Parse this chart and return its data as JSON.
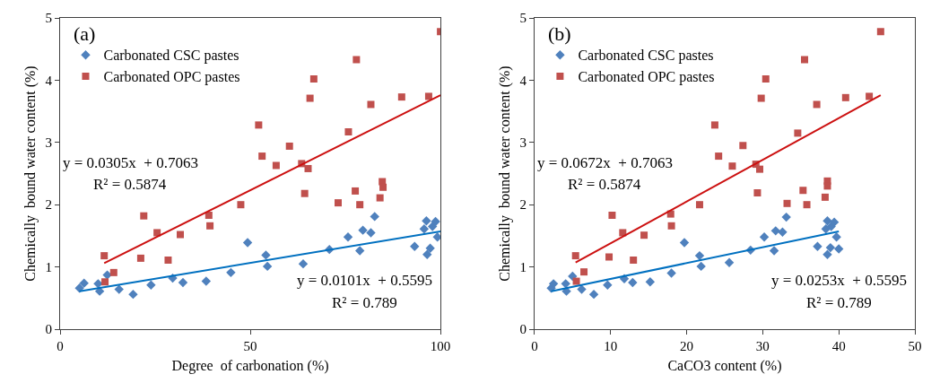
{
  "chart_data": [
    {
      "type": "scatter",
      "title": "(a)",
      "xlabel": "Degree  of carbonation (%)",
      "ylabel": "Chemically  bound water content (%)",
      "xlim": [
        0,
        100
      ],
      "xticks": [
        0,
        50,
        100
      ],
      "ylim": [
        0,
        5
      ],
      "yticks": [
        0,
        1,
        2,
        3,
        4,
        5
      ],
      "legend": "top left",
      "series": [
        {
          "name": "Carbonated CSC pastes",
          "color": "#4f81bd",
          "marker": "diamond",
          "x": [
            5.1,
            6.3,
            10.0,
            10.4,
            12.4,
            15.5,
            19.2,
            23.9,
            29.6,
            32.3,
            38.4,
            44.9,
            49.3,
            54.1,
            54.5,
            63.9,
            70.8,
            75.7,
            78.8,
            79.6,
            81.7,
            82.7,
            93.2,
            95.7,
            96.3,
            96.5,
            97.3,
            97.9,
            98.7,
            99.2
          ],
          "values": [
            0.66,
            0.74,
            0.73,
            0.61,
            0.87,
            0.64,
            0.56,
            0.71,
            0.82,
            0.75,
            0.77,
            0.91,
            1.39,
            1.19,
            1.01,
            1.05,
            1.28,
            1.48,
            1.26,
            1.59,
            1.55,
            1.81,
            1.33,
            1.61,
            1.74,
            1.2,
            1.3,
            1.65,
            1.73,
            1.48
          ]
        },
        {
          "name": "Carbonated OPC pastes",
          "color": "#c0504d",
          "marker": "square",
          "x": [
            100,
            77.9,
            66.7,
            65.7,
            81.7,
            89.8,
            96.9,
            52.2,
            75.8,
            60.3,
            53.1,
            56.8,
            63.5,
            65.2,
            84.7,
            84.9,
            64.3,
            73.1,
            77.6,
            78.8,
            84.1,
            47.5,
            39.1,
            39.4,
            22.0,
            25.5,
            31.6,
            21.2,
            28.4,
            11.6,
            14.1,
            11.8
          ],
          "values": [
            4.78,
            4.33,
            4.02,
            3.71,
            3.61,
            3.73,
            3.74,
            3.28,
            3.17,
            2.94,
            2.78,
            2.63,
            2.66,
            2.58,
            2.37,
            2.28,
            2.18,
            2.03,
            2.22,
            2.0,
            2.11,
            2.0,
            1.83,
            1.66,
            1.82,
            1.55,
            1.52,
            1.14,
            1.11,
            1.18,
            0.91,
            0.76
          ]
        },
        {
          "type": "line",
          "color": "#0070c0",
          "marker": "none",
          "line_style": "solid",
          "x": [
            5.1,
            100
          ],
          "values": [
            0.61,
            1.57
          ]
        },
        {
          "type": "line",
          "color": "#cc1010",
          "marker": "none",
          "line_style": "solid",
          "x": [
            11.6,
            100
          ],
          "values": [
            1.06,
            3.76
          ]
        }
      ],
      "annotations": [
        "y = 0.0305x  + 0.7063",
        "R² = 0.5874",
        "y = 0.0101x  + 0.5595",
        "R² = 0.789"
      ]
    },
    {
      "type": "scatter",
      "title": "(b)",
      "xlabel": "CaCO3 content (%)",
      "ylabel": "Chemically  bound water content (%)",
      "xlim": [
        0,
        50
      ],
      "xticks": [
        0,
        10,
        20,
        30,
        40,
        50
      ],
      "ylim": [
        0,
        5
      ],
      "yticks": [
        0,
        1,
        2,
        3,
        4,
        5
      ],
      "legend": "top left",
      "series": [
        {
          "name": "Carbonated CSC pastes",
          "color": "#4f81bd",
          "marker": "diamond",
          "x": [
            2.2,
            2.5,
            4.1,
            4.2,
            5.0,
            6.2,
            7.8,
            9.6,
            11.8,
            12.9,
            15.2,
            18.0,
            19.7,
            21.7,
            21.9,
            25.6,
            28.4,
            30.2,
            31.5,
            31.7,
            32.6,
            33.1,
            37.2,
            38.3,
            38.5,
            38.5,
            38.9,
            39.0,
            39.4,
            39.7,
            40.0
          ],
          "values": [
            0.66,
            0.73,
            0.73,
            0.61,
            0.85,
            0.64,
            0.56,
            0.71,
            0.81,
            0.75,
            0.76,
            0.9,
            1.39,
            1.18,
            1.01,
            1.07,
            1.27,
            1.48,
            1.26,
            1.58,
            1.56,
            1.8,
            1.33,
            1.61,
            1.74,
            1.2,
            1.31,
            1.65,
            1.72,
            1.48,
            1.29
          ]
        },
        {
          "name": "Carbonated OPC pastes",
          "color": "#c0504d",
          "marker": "square",
          "x": [
            45.5,
            35.5,
            30.4,
            29.8,
            37.1,
            40.9,
            44.0,
            23.7,
            34.6,
            27.4,
            24.2,
            26.0,
            29.1,
            29.6,
            38.5,
            38.5,
            29.3,
            33.2,
            35.3,
            35.8,
            38.2,
            21.7,
            17.9,
            18.0,
            10.2,
            11.6,
            14.4,
            9.8,
            13.0,
            5.4,
            6.5,
            5.5
          ],
          "values": [
            4.78,
            4.33,
            4.02,
            3.71,
            3.61,
            3.72,
            3.74,
            3.28,
            3.15,
            2.95,
            2.78,
            2.62,
            2.65,
            2.57,
            2.38,
            2.3,
            2.19,
            2.02,
            2.23,
            2.0,
            2.12,
            2.0,
            1.85,
            1.66,
            1.83,
            1.55,
            1.51,
            1.16,
            1.11,
            1.18,
            0.92,
            0.77
          ]
        },
        {
          "type": "line",
          "color": "#0070c0",
          "marker": "none",
          "line_style": "solid",
          "x": [
            2.2,
            40.0
          ],
          "values": [
            0.61,
            1.57
          ]
        },
        {
          "type": "line",
          "color": "#cc1010",
          "marker": "none",
          "line_style": "solid",
          "x": [
            5.4,
            45.5
          ],
          "values": [
            1.07,
            3.76
          ]
        }
      ],
      "annotations": [
        "y = 0.0672x  + 0.7063",
        "R² = 0.5874",
        "y = 0.0253x  + 0.5595",
        "R² = 0.789"
      ]
    }
  ]
}
